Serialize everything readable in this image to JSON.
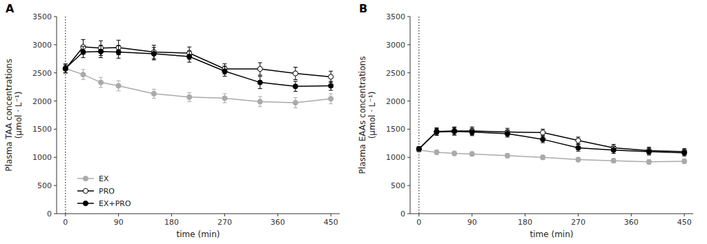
{
  "chart_data": [
    {
      "type": "line",
      "title": "A",
      "ylabel": "Plasma TAA concentrations\n(μmol · L⁻¹)",
      "xlabel": "time (min)",
      "x": [
        0,
        30,
        60,
        90,
        150,
        210,
        270,
        330,
        390,
        450
      ],
      "series": [
        {
          "name": "EX",
          "color": "#aaaaaa",
          "marker": "circle",
          "values": [
            2580,
            2470,
            2330,
            2270,
            2130,
            2070,
            2050,
            1990,
            1970,
            2040
          ],
          "yerr": [
            80,
            90,
            90,
            90,
            80,
            80,
            80,
            90,
            90,
            90
          ]
        },
        {
          "name": "PRO",
          "color": "#000000",
          "marker": "open-circle",
          "values": [
            2570,
            2960,
            2940,
            2950,
            2870,
            2850,
            2570,
            2570,
            2490,
            2430
          ],
          "yerr": [
            70,
            130,
            130,
            130,
            120,
            110,
            90,
            110,
            110,
            100
          ]
        },
        {
          "name": "EX+PRO",
          "color": "#000000",
          "marker": "circle",
          "values": [
            2580,
            2870,
            2880,
            2870,
            2840,
            2790,
            2530,
            2330,
            2260,
            2270
          ],
          "yerr": [
            80,
            100,
            110,
            110,
            110,
            100,
            90,
            110,
            90,
            80
          ]
        }
      ],
      "xlim": [
        -15,
        465
      ],
      "xticks": [
        0,
        90,
        180,
        270,
        360,
        450
      ],
      "ylim": [
        0,
        3500
      ],
      "yticks": [
        0,
        500,
        1000,
        1500,
        2000,
        2500,
        3000,
        3500
      ],
      "vlines": [
        0
      ],
      "grid": false,
      "legend": "lower left"
    },
    {
      "type": "line",
      "title": "B",
      "ylabel": "Plasma EAAs concentrations\n(μmol · L⁻¹)",
      "xlabel": "time (min)",
      "x": [
        0,
        30,
        60,
        90,
        150,
        210,
        270,
        330,
        390,
        450
      ],
      "series": [
        {
          "name": "EX",
          "color": "#aaaaaa",
          "marker": "circle",
          "values": [
            1130,
            1090,
            1070,
            1060,
            1030,
            1000,
            960,
            940,
            920,
            930
          ],
          "yerr": [
            40,
            40,
            40,
            40,
            40,
            40,
            40,
            40,
            40,
            40
          ]
        },
        {
          "name": "PRO",
          "color": "#000000",
          "marker": "open-circle",
          "values": [
            1150,
            1460,
            1470,
            1470,
            1450,
            1440,
            1300,
            1170,
            1120,
            1100
          ],
          "yerr": [
            40,
            65,
            70,
            70,
            65,
            60,
            60,
            60,
            60,
            55
          ]
        },
        {
          "name": "EX+PRO",
          "color": "#000000",
          "marker": "circle",
          "values": [
            1150,
            1450,
            1460,
            1450,
            1420,
            1320,
            1170,
            1130,
            1100,
            1080
          ],
          "yerr": [
            40,
            60,
            65,
            65,
            60,
            60,
            60,
            60,
            60,
            55
          ]
        }
      ],
      "xlim": [
        -15,
        465
      ],
      "xticks": [
        0,
        90,
        180,
        270,
        360,
        450
      ],
      "ylim": [
        0,
        3500
      ],
      "yticks": [
        0,
        500,
        1000,
        1500,
        2000,
        2500,
        3000,
        3500
      ],
      "vlines": [
        0
      ],
      "grid": false,
      "legend": false
    }
  ]
}
